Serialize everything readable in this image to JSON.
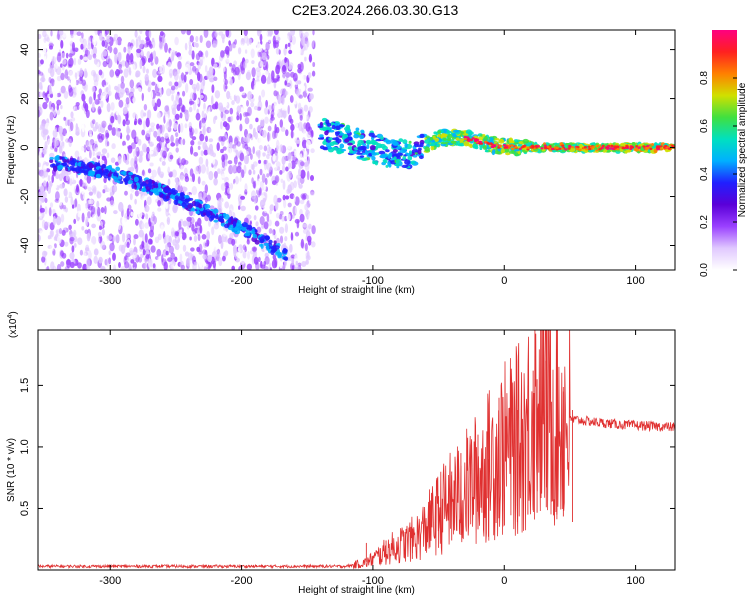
{
  "figure": {
    "title": "C2E3.2024.266.03.30.G13"
  },
  "chart_data": [
    {
      "type": "heatmap",
      "title": "C2E3.2024.266.03.30.G13",
      "xlabel": "Height of straight line (km)",
      "ylabel": "Frequency (Hz)",
      "xlim": [
        -355,
        130
      ],
      "ylim": [
        -50,
        48
      ],
      "x_ticks": [
        -300,
        -200,
        -100,
        0,
        100
      ],
      "y_ticks": [
        -40,
        -20,
        0,
        20,
        40
      ],
      "grid": false,
      "colorbar": {
        "label": "Normalized spectral amplitude",
        "range": [
          0.0,
          1.0
        ],
        "ticks": [
          0.0,
          0.2,
          0.4,
          0.6,
          0.8
        ],
        "colors": [
          "#ffffff",
          "#e0c8ff",
          "#9a40ff",
          "#5a00d8",
          "#2020ff",
          "#00b0ff",
          "#00e0c0",
          "#40e040",
          "#d0e000",
          "#ff8000",
          "#ff2020",
          "#ff0080"
        ]
      },
      "features": [
        {
          "name": "noise",
          "x_range": [
            -355,
            -145
          ],
          "y_range": [
            -50,
            48
          ],
          "amplitude": "0.0-0.2"
        },
        {
          "name": "descending trace",
          "x": [
            -345,
            -300,
            -250,
            -200,
            -165
          ],
          "y": [
            -6,
            -10,
            -20,
            -33,
            -44
          ],
          "amplitude": "0.2-0.5"
        },
        {
          "name": "signal trace",
          "x": [
            -140,
            -120,
            -100,
            -85,
            -70,
            -50,
            -30,
            -10,
            10,
            30,
            60,
            90,
            130
          ],
          "y": [
            6,
            3,
            0,
            -3,
            -2,
            4,
            4,
            1,
            0,
            0,
            0,
            0,
            0
          ],
          "amplitude": "0.3-1.0"
        }
      ]
    },
    {
      "type": "line",
      "title": "",
      "xlabel": "Height of straight line (km)",
      "ylabel": "SNR (10 * v/v)",
      "scale_label": "(x10",
      "scale_exponent": "4",
      "xlim": [
        -355,
        130
      ],
      "ylim": [
        0,
        1.95
      ],
      "x_ticks": [
        -300,
        -200,
        -100,
        0,
        100
      ],
      "y_ticks": [
        0.5,
        1.0,
        1.5
      ],
      "grid": false,
      "series": [
        {
          "color": "#e03030",
          "x": [
            -355,
            -300,
            -250,
            -200,
            -150,
            -120,
            -105,
            -95,
            -85,
            -75,
            -65,
            -55,
            -45,
            -35,
            -25,
            -15,
            -5,
            5,
            15,
            22,
            28,
            35,
            45,
            55,
            70,
            90,
            110,
            130
          ],
          "y": [
            0.03,
            0.03,
            0.03,
            0.03,
            0.03,
            0.03,
            0.06,
            0.12,
            0.18,
            0.22,
            0.28,
            0.4,
            0.52,
            0.6,
            0.7,
            0.8,
            0.95,
            1.0,
            1.1,
            1.3,
            1.4,
            1.3,
            1.22,
            1.22,
            1.2,
            1.18,
            1.17,
            1.16
          ],
          "peaks_x": [
            -105,
            -90,
            -70,
            -50,
            -40,
            -33,
            -20,
            -12,
            -4,
            10,
            18,
            22,
            25,
            28,
            32,
            40,
            45,
            52
          ],
          "peaks_y": [
            0.22,
            0.24,
            0.3,
            0.6,
            0.8,
            0.95,
            1.1,
            0.9,
            1.4,
            1.3,
            1.5,
            1.62,
            1.55,
            1.95,
            1.7,
            1.5,
            1.45,
            1.3
          ]
        }
      ]
    }
  ]
}
